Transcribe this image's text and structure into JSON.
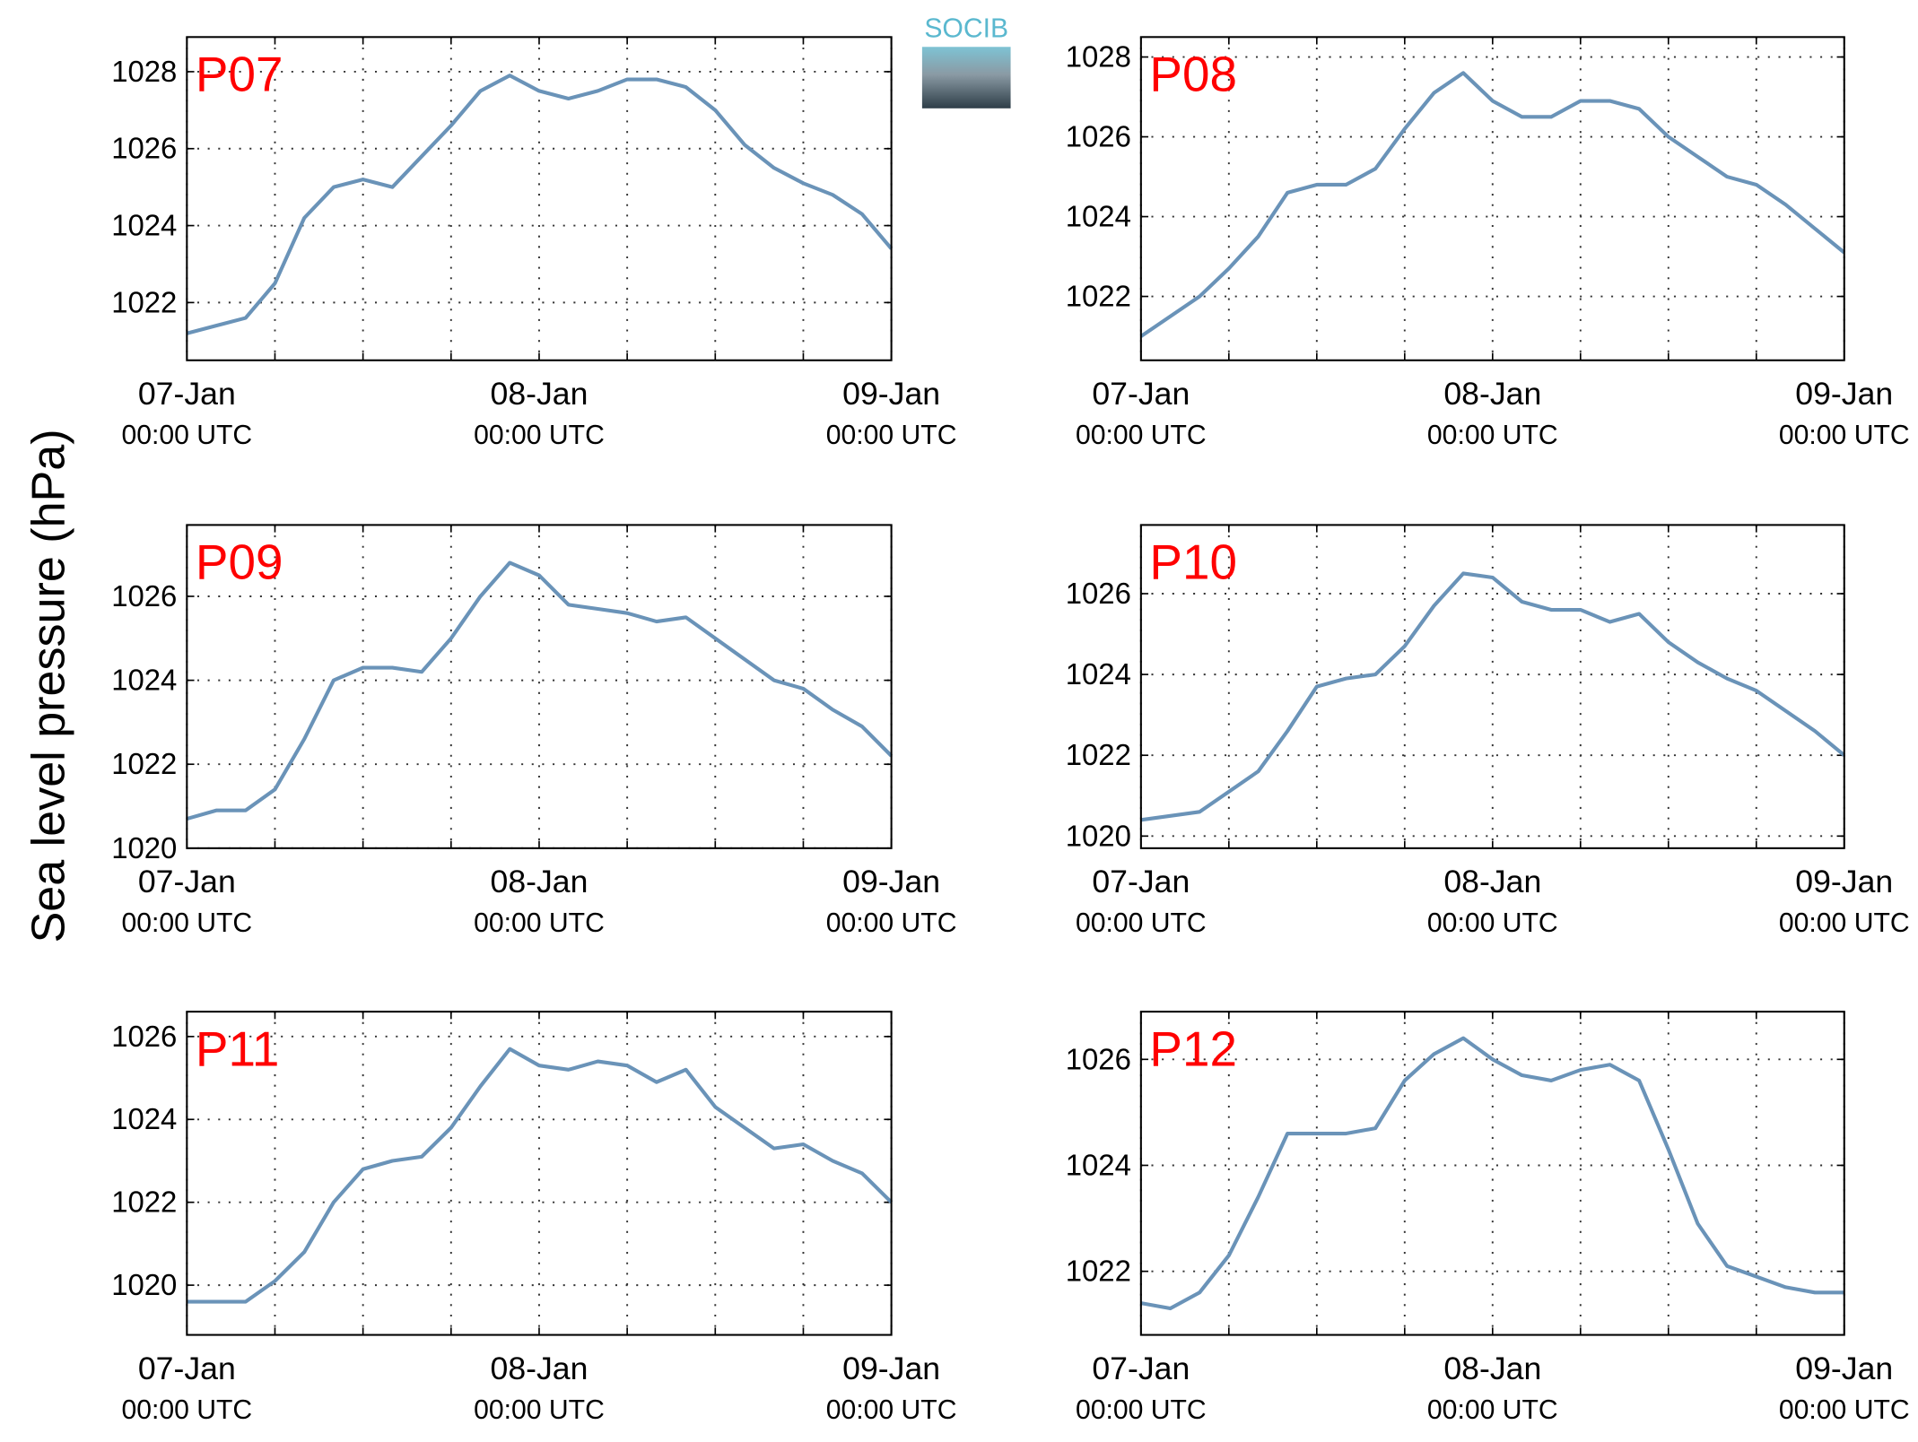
{
  "logo": "SOCIB",
  "ylabel": "Sea level pressure (hPa)",
  "chart_data": [
    {
      "type": "line",
      "title": "P07",
      "x": [
        0,
        2,
        4,
        6,
        8,
        10,
        12,
        14,
        16,
        18,
        20,
        22,
        24,
        26,
        28,
        30,
        32,
        34,
        36,
        38,
        40,
        42,
        44,
        46,
        48
      ],
      "series": [
        {
          "name": "P07",
          "color": "#6a93b8",
          "values": [
            1021.2,
            1021.4,
            1021.6,
            1022.5,
            1024.2,
            1025.0,
            1025.2,
            1025.0,
            1025.8,
            1026.6,
            1027.5,
            1027.9,
            1027.5,
            1027.3,
            1027.5,
            1027.8,
            1027.8,
            1027.6,
            1027.0,
            1026.1,
            1025.5,
            1025.1,
            1024.8,
            1024.3,
            1023.4
          ]
        }
      ],
      "xlim": [
        0,
        48
      ],
      "xticks": [
        {
          "value": 0,
          "label": "07-Jan",
          "sublabel": "00:00 UTC"
        },
        {
          "value": 24,
          "label": "08-Jan",
          "sublabel": "00:00 UTC"
        },
        {
          "value": 48,
          "label": "09-Jan",
          "sublabel": "00:00 UTC"
        }
      ],
      "xminor": [
        6,
        12,
        18,
        30,
        36,
        42
      ],
      "ylim": [
        1020.5,
        1028.9
      ],
      "yticks": [
        1022,
        1024,
        1026,
        1028
      ],
      "grid": true
    },
    {
      "type": "line",
      "title": "P08",
      "x": [
        0,
        2,
        4,
        6,
        8,
        10,
        12,
        14,
        16,
        18,
        20,
        22,
        24,
        26,
        28,
        30,
        32,
        34,
        36,
        38,
        40,
        42,
        44,
        46,
        48
      ],
      "series": [
        {
          "name": "P08",
          "color": "#6a93b8",
          "values": [
            1021.0,
            1021.5,
            1022.0,
            1022.7,
            1023.5,
            1024.6,
            1024.8,
            1024.8,
            1025.2,
            1026.2,
            1027.1,
            1027.6,
            1026.9,
            1026.5,
            1026.5,
            1026.9,
            1026.9,
            1026.7,
            1026.0,
            1025.5,
            1025.0,
            1024.8,
            1024.3,
            1023.7,
            1023.1
          ]
        }
      ],
      "xlim": [
        0,
        48
      ],
      "xticks": [
        {
          "value": 0,
          "label": "07-Jan",
          "sublabel": "00:00 UTC"
        },
        {
          "value": 24,
          "label": "08-Jan",
          "sublabel": "00:00 UTC"
        },
        {
          "value": 48,
          "label": "09-Jan",
          "sublabel": "00:00 UTC"
        }
      ],
      "xminor": [
        6,
        12,
        18,
        30,
        36,
        42
      ],
      "ylim": [
        1020.4,
        1028.5
      ],
      "yticks": [
        1022,
        1024,
        1026,
        1028
      ],
      "grid": true
    },
    {
      "type": "line",
      "title": "P09",
      "x": [
        0,
        2,
        4,
        6,
        8,
        10,
        12,
        14,
        16,
        18,
        20,
        22,
        24,
        26,
        28,
        30,
        32,
        34,
        36,
        38,
        40,
        42,
        44,
        46,
        48
      ],
      "series": [
        {
          "name": "P09",
          "color": "#6a93b8",
          "values": [
            1020.7,
            1020.9,
            1020.9,
            1021.4,
            1022.6,
            1024.0,
            1024.3,
            1024.3,
            1024.2,
            1025.0,
            1026.0,
            1026.8,
            1026.5,
            1025.8,
            1025.7,
            1025.6,
            1025.4,
            1025.5,
            1025.0,
            1024.5,
            1024.0,
            1023.8,
            1023.3,
            1022.9,
            1022.2
          ]
        }
      ],
      "xlim": [
        0,
        48
      ],
      "xticks": [
        {
          "value": 0,
          "label": "07-Jan",
          "sublabel": "00:00 UTC"
        },
        {
          "value": 24,
          "label": "08-Jan",
          "sublabel": "00:00 UTC"
        },
        {
          "value": 48,
          "label": "09-Jan",
          "sublabel": "00:00 UTC"
        }
      ],
      "xminor": [
        6,
        12,
        18,
        30,
        36,
        42
      ],
      "ylim": [
        1020,
        1027.7
      ],
      "yticks": [
        1020,
        1022,
        1024,
        1026
      ],
      "grid": true
    },
    {
      "type": "line",
      "title": "P10",
      "x": [
        0,
        2,
        4,
        6,
        8,
        10,
        12,
        14,
        16,
        18,
        20,
        22,
        24,
        26,
        28,
        30,
        32,
        34,
        36,
        38,
        40,
        42,
        44,
        46,
        48
      ],
      "series": [
        {
          "name": "P10",
          "color": "#6a93b8",
          "values": [
            1020.4,
            1020.5,
            1020.6,
            1021.1,
            1021.6,
            1022.6,
            1023.7,
            1023.9,
            1024.0,
            1024.7,
            1025.7,
            1026.5,
            1026.4,
            1025.8,
            1025.6,
            1025.6,
            1025.3,
            1025.5,
            1024.8,
            1024.3,
            1023.9,
            1023.6,
            1023.1,
            1022.6,
            1022.0
          ]
        }
      ],
      "xlim": [
        0,
        48
      ],
      "xticks": [
        {
          "value": 0,
          "label": "07-Jan",
          "sublabel": "00:00 UTC"
        },
        {
          "value": 24,
          "label": "08-Jan",
          "sublabel": "00:00 UTC"
        },
        {
          "value": 48,
          "label": "09-Jan",
          "sublabel": "00:00 UTC"
        }
      ],
      "xminor": [
        6,
        12,
        18,
        30,
        36,
        42
      ],
      "ylim": [
        1019.7,
        1027.7
      ],
      "yticks": [
        1020,
        1022,
        1024,
        1026
      ],
      "grid": true
    },
    {
      "type": "line",
      "title": "P11",
      "x": [
        0,
        2,
        4,
        6,
        8,
        10,
        12,
        14,
        16,
        18,
        20,
        22,
        24,
        26,
        28,
        30,
        32,
        34,
        36,
        38,
        40,
        42,
        44,
        46,
        48
      ],
      "series": [
        {
          "name": "P11",
          "color": "#6a93b8",
          "values": [
            1019.6,
            1019.6,
            1019.6,
            1020.1,
            1020.8,
            1022.0,
            1022.8,
            1023.0,
            1023.1,
            1023.8,
            1024.8,
            1025.7,
            1025.3,
            1025.2,
            1025.4,
            1025.3,
            1024.9,
            1025.2,
            1024.3,
            1023.8,
            1023.3,
            1023.4,
            1023.0,
            1022.7,
            1022.0
          ]
        }
      ],
      "xlim": [
        0,
        48
      ],
      "xticks": [
        {
          "value": 0,
          "label": "07-Jan",
          "sublabel": "00:00 UTC"
        },
        {
          "value": 24,
          "label": "08-Jan",
          "sublabel": "00:00 UTC"
        },
        {
          "value": 48,
          "label": "09-Jan",
          "sublabel": "00:00 UTC"
        }
      ],
      "xminor": [
        6,
        12,
        18,
        30,
        36,
        42
      ],
      "ylim": [
        1018.8,
        1026.6
      ],
      "yticks": [
        1020,
        1022,
        1024,
        1026
      ],
      "grid": true
    },
    {
      "type": "line",
      "title": "P12",
      "x": [
        0,
        2,
        4,
        6,
        8,
        10,
        12,
        14,
        16,
        18,
        20,
        22,
        24,
        26,
        28,
        30,
        32,
        34,
        36,
        38,
        40,
        42,
        44,
        46,
        48
      ],
      "series": [
        {
          "name": "P12",
          "color": "#6a93b8",
          "values": [
            1021.4,
            1021.3,
            1021.6,
            1022.3,
            1023.4,
            1024.6,
            1024.6,
            1024.6,
            1024.7,
            1025.6,
            1026.1,
            1026.4,
            1026.0,
            1025.7,
            1025.6,
            1025.8,
            1025.9,
            1025.6,
            1024.3,
            1022.9,
            1022.1,
            1021.9,
            1021.7,
            1021.6,
            1021.6
          ]
        }
      ],
      "xlim": [
        0,
        48
      ],
      "xticks": [
        {
          "value": 0,
          "label": "07-Jan",
          "sublabel": "00:00 UTC"
        },
        {
          "value": 24,
          "label": "08-Jan",
          "sublabel": "00:00 UTC"
        },
        {
          "value": 48,
          "label": "09-Jan",
          "sublabel": "00:00 UTC"
        }
      ],
      "xminor": [
        6,
        12,
        18,
        30,
        36,
        42
      ],
      "ylim": [
        1020.8,
        1026.9
      ],
      "yticks": [
        1022,
        1024,
        1026
      ],
      "grid": true
    }
  ]
}
